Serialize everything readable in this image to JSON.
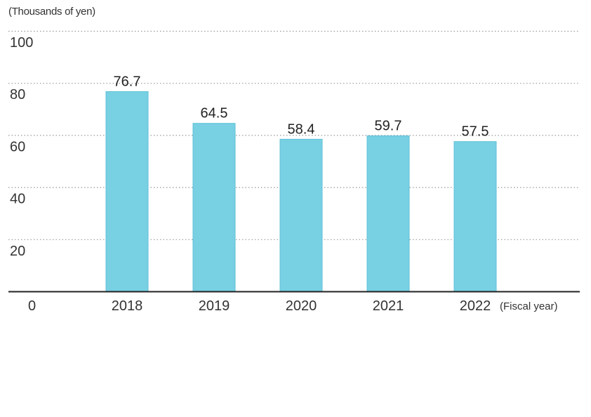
{
  "chart_data": {
    "type": "bar",
    "unit_label": "(Thousands of yen)",
    "x_suffix_label": "(Fiscal year)",
    "categories": [
      "2018",
      "2019",
      "2020",
      "2021",
      "2022"
    ],
    "values": [
      76.7,
      64.5,
      58.4,
      59.7,
      57.5
    ],
    "value_labels": [
      "76.7",
      "64.5",
      "58.4",
      "59.7",
      "57.5"
    ],
    "y_ticks": [
      0,
      20,
      40,
      60,
      80,
      100
    ],
    "ylim": [
      0,
      100
    ],
    "grid": true,
    "grid_style": "dotted",
    "title": "",
    "xlabel": "",
    "ylabel": ""
  },
  "colors": {
    "bar": "#78d0e3",
    "bar_stroke": "#5fc1d7",
    "grid": "#9a9a9a",
    "axis": "#222222",
    "text": "#333333"
  }
}
